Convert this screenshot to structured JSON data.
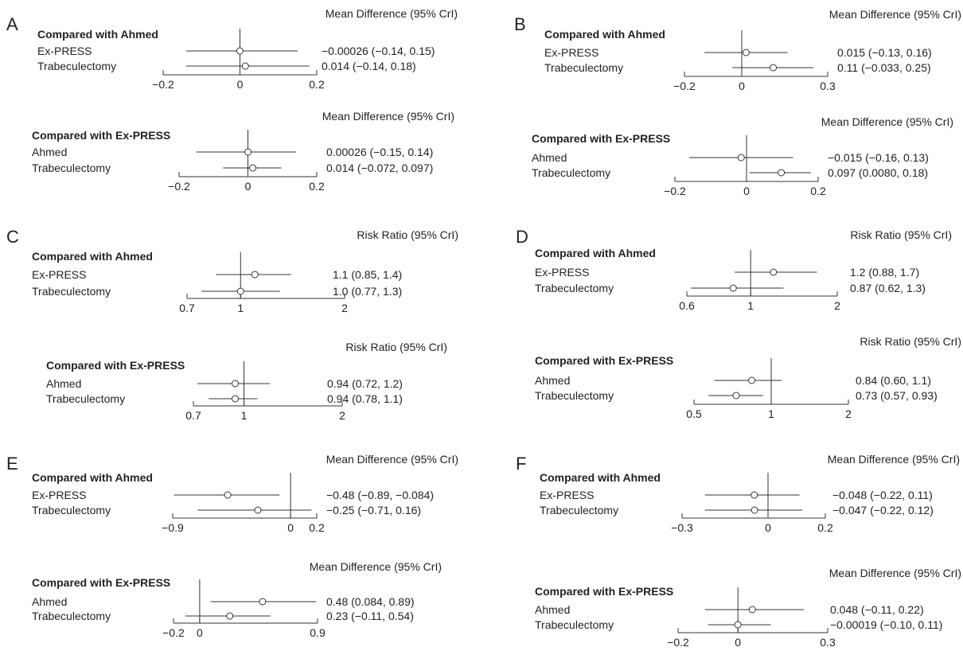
{
  "chart_data": [
    {
      "panel": "A",
      "type": "forest",
      "header": "Mean Difference (95% CrI)",
      "scale": "linear",
      "groups": [
        {
          "title": "Compared with Ahmed",
          "xlim": [
            -0.2,
            0.2
          ],
          "ticks": [
            "-0.2",
            "0",
            "0.2"
          ],
          "ref": 0,
          "rows": [
            {
              "label": "Ex-PRESS",
              "est": -0.00026,
              "lo": -0.14,
              "hi": 0.15,
              "text": "−0.00026 (−0.14, 0.15)"
            },
            {
              "label": "Trabeculectomy",
              "est": 0.014,
              "lo": -0.14,
              "hi": 0.18,
              "text": "0.014 (−0.14, 0.18)"
            }
          ]
        },
        {
          "title": "Compared with Ex-PRESS",
          "xlim": [
            -0.2,
            0.2
          ],
          "ticks": [
            "-0.2",
            "0",
            "0.2"
          ],
          "ref": 0,
          "rows": [
            {
              "label": "Ahmed",
              "est": 0.00026,
              "lo": -0.15,
              "hi": 0.14,
              "text": "0.00026 (−0.15, 0.14)"
            },
            {
              "label": "Trabeculectomy",
              "est": 0.014,
              "lo": -0.072,
              "hi": 0.097,
              "text": "0.014 (−0.072, 0.097)"
            }
          ]
        }
      ]
    },
    {
      "panel": "B",
      "type": "forest",
      "header": "Mean Difference (95% CrI)",
      "scale": "linear",
      "groups": [
        {
          "title": "Compared with Ahmed",
          "xlim": [
            -0.2,
            0.3
          ],
          "ticks": [
            "-0.2",
            "0",
            "0.3"
          ],
          "ref": 0,
          "rows": [
            {
              "label": "Ex-PRESS",
              "est": 0.015,
              "lo": -0.13,
              "hi": 0.16,
              "text": "0.015 (−0.13, 0.16)"
            },
            {
              "label": "Trabeculectomy",
              "est": 0.11,
              "lo": -0.033,
              "hi": 0.25,
              "text": "0.11 (−0.033, 0.25)"
            }
          ]
        },
        {
          "title": "Compared with Ex-PRESS",
          "xlim": [
            -0.2,
            0.2
          ],
          "ticks": [
            "-0.2",
            "0",
            "0.2"
          ],
          "ref": 0,
          "rows": [
            {
              "label": "Ahmed",
              "est": -0.015,
              "lo": -0.16,
              "hi": 0.13,
              "text": "−0.015 (−0.16, 0.13)"
            },
            {
              "label": "Trabeculectomy",
              "est": 0.097,
              "lo": 0.008,
              "hi": 0.18,
              "text": "0.097 (0.0080, 0.18)"
            }
          ]
        }
      ]
    },
    {
      "panel": "C",
      "type": "forest",
      "header": "Risk Ratio (95% CrI)",
      "scale": "log",
      "groups": [
        {
          "title": "Compared with Ahmed",
          "xlim": [
            0.7,
            2
          ],
          "ticks": [
            "0.7",
            "1",
            "2"
          ],
          "ref": 1,
          "rows": [
            {
              "label": "Ex-PRESS",
              "est": 1.1,
              "lo": 0.85,
              "hi": 1.4,
              "text": "1.1 (0.85, 1.4)"
            },
            {
              "label": "Trabeculectomy",
              "est": 1.0,
              "lo": 0.77,
              "hi": 1.3,
              "text": "1.0 (0.77, 1.3)"
            }
          ]
        },
        {
          "title": "Compared with Ex-PRESS",
          "xlim": [
            0.7,
            2
          ],
          "ticks": [
            "0.7",
            "1",
            "2"
          ],
          "ref": 1,
          "rows": [
            {
              "label": "Ahmed",
              "est": 0.94,
              "lo": 0.72,
              "hi": 1.2,
              "text": "0.94 (0.72, 1.2)"
            },
            {
              "label": "Trabeculectomy",
              "est": 0.94,
              "lo": 0.78,
              "hi": 1.1,
              "text": "0.94 (0.78, 1.1)"
            }
          ]
        }
      ]
    },
    {
      "panel": "D",
      "type": "forest",
      "header": "Risk Ratio (95% CrI)",
      "scale": "log",
      "groups": [
        {
          "title": "Compared with Ahmed",
          "xlim": [
            0.6,
            2
          ],
          "ticks": [
            "0.6",
            "1",
            "2"
          ],
          "ref": 1,
          "rows": [
            {
              "label": "Ex-PRESS",
              "est": 1.2,
              "lo": 0.88,
              "hi": 1.7,
              "text": "1.2 (0.88, 1.7)"
            },
            {
              "label": "Trabeculectomy",
              "est": 0.87,
              "lo": 0.62,
              "hi": 1.3,
              "text": "0.87 (0.62, 1.3)"
            }
          ]
        },
        {
          "title": "Compared with Ex-PRESS",
          "xlim": [
            0.5,
            2
          ],
          "ticks": [
            "0.5",
            "1",
            "2"
          ],
          "ref": 1,
          "rows": [
            {
              "label": "Ahmed",
              "est": 0.84,
              "lo": 0.6,
              "hi": 1.1,
              "text": "0.84 (0.60, 1.1)"
            },
            {
              "label": "Trabeculectomy",
              "est": 0.73,
              "lo": 0.57,
              "hi": 0.93,
              "text": "0.73 (0.57, 0.93)"
            }
          ]
        }
      ]
    },
    {
      "panel": "E",
      "type": "forest",
      "header": "Mean Difference (95% CrI)",
      "scale": "linear",
      "groups": [
        {
          "title": "Compared with Ahmed",
          "xlim": [
            -0.9,
            0.2
          ],
          "ticks": [
            "-0.9",
            "0",
            "0.2"
          ],
          "ref": 0,
          "rows": [
            {
              "label": "Ex-PRESS",
              "est": -0.48,
              "lo": -0.89,
              "hi": -0.084,
              "text": "−0.48 (−0.89, −0.084)"
            },
            {
              "label": "Trabeculectomy",
              "est": -0.25,
              "lo": -0.71,
              "hi": 0.16,
              "text": "−0.25 (−0.71, 0.16)"
            }
          ]
        },
        {
          "title": "Compared with Ex-PRESS",
          "xlim": [
            -0.2,
            0.9
          ],
          "ticks": [
            "-0.2",
            "0",
            "0.9"
          ],
          "ref": 0,
          "rows": [
            {
              "label": "Ahmed",
              "est": 0.48,
              "lo": 0.084,
              "hi": 0.89,
              "text": "0.48 (0.084, 0.89)"
            },
            {
              "label": "Trabeculectomy",
              "est": 0.23,
              "lo": -0.11,
              "hi": 0.54,
              "text": "0.23 (−0.11, 0.54)"
            }
          ]
        }
      ]
    },
    {
      "panel": "F",
      "type": "forest",
      "header": "Mean Difference (95% CrI)",
      "scale": "linear",
      "groups": [
        {
          "title": "Compared with Ahmed",
          "xlim": [
            -0.3,
            0.2
          ],
          "ticks": [
            "-0.3",
            "0",
            "0.2"
          ],
          "ref": 0,
          "rows": [
            {
              "label": "Ex-PRESS",
              "est": -0.048,
              "lo": -0.22,
              "hi": 0.11,
              "text": "−0.048 (−0.22, 0.11)"
            },
            {
              "label": "Trabeculectomy",
              "est": -0.047,
              "lo": -0.22,
              "hi": 0.12,
              "text": "−0.047 (−0.22, 0.12)"
            }
          ]
        },
        {
          "title": "Compared with Ex-PRESS",
          "xlim": [
            -0.2,
            0.3
          ],
          "ticks": [
            "-0.2",
            "0",
            "0.3"
          ],
          "ref": 0,
          "rows": [
            {
              "label": "Ahmed",
              "est": 0.048,
              "lo": -0.11,
              "hi": 0.22,
              "text": "0.048 (−0.11, 0.22)"
            },
            {
              "label": "Trabeculectomy",
              "est": -0.00019,
              "lo": -0.1,
              "hi": 0.11,
              "text": "−0.00019 (−0.10, 0.11)"
            }
          ]
        }
      ]
    }
  ]
}
